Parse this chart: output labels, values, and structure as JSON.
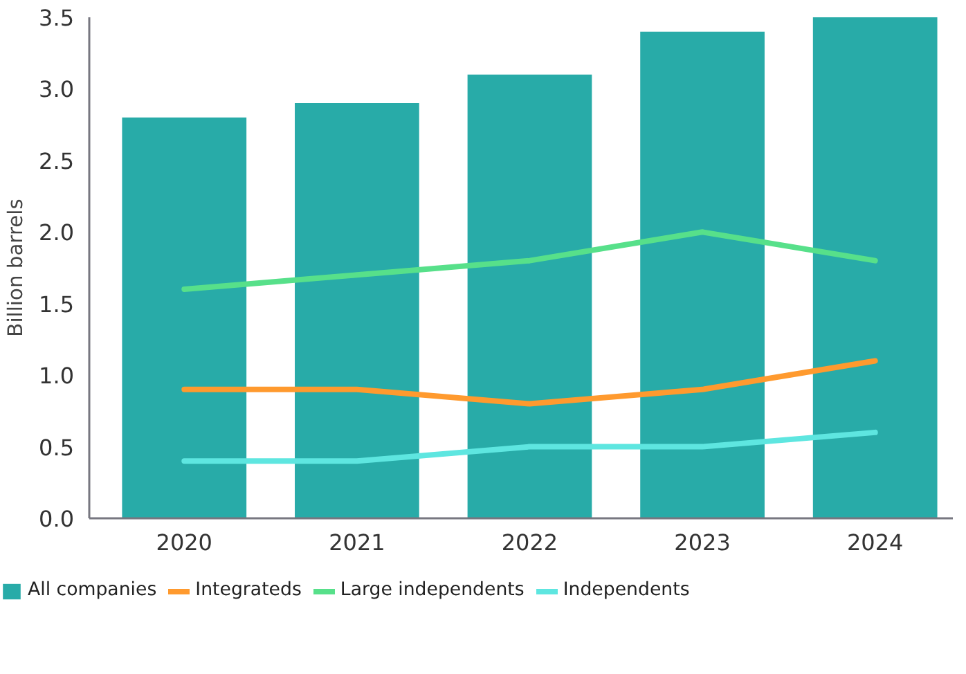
{
  "chart_data": {
    "type": "bar",
    "ylabel": "Billion barrels",
    "categories": [
      "2020",
      "2021",
      "2022",
      "2023",
      "2024"
    ],
    "series": [
      {
        "name": "All companies",
        "color": "#28aba8",
        "values": [
          2.8,
          2.9,
          3.1,
          3.4,
          3.5
        ]
      },
      {
        "name": "Integrateds",
        "type": "line",
        "color": "#ff9a2e",
        "values": [
          0.9,
          0.9,
          0.8,
          0.9,
          1.1
        ]
      },
      {
        "name": "Large independents",
        "type": "line",
        "color": "#57e08a",
        "values": [
          1.6,
          1.7,
          1.8,
          2.0,
          1.8
        ]
      },
      {
        "name": "Independents",
        "type": "line",
        "color": "#5ee6e0",
        "values": [
          0.4,
          0.4,
          0.5,
          0.5,
          0.6
        ]
      }
    ],
    "ylim": [
      0,
      3.5
    ],
    "yticks": [
      {
        "value": 0,
        "label": "0.0"
      },
      0.5,
      {
        "value": 1,
        "label": "1.0"
      },
      1.5,
      {
        "value": 2,
        "label": "2.0"
      },
      2.5,
      {
        "value": 3,
        "label": "3.0"
      },
      3.5
    ],
    "grid": false,
    "legend": "bottom",
    "line_style": "solid"
  }
}
